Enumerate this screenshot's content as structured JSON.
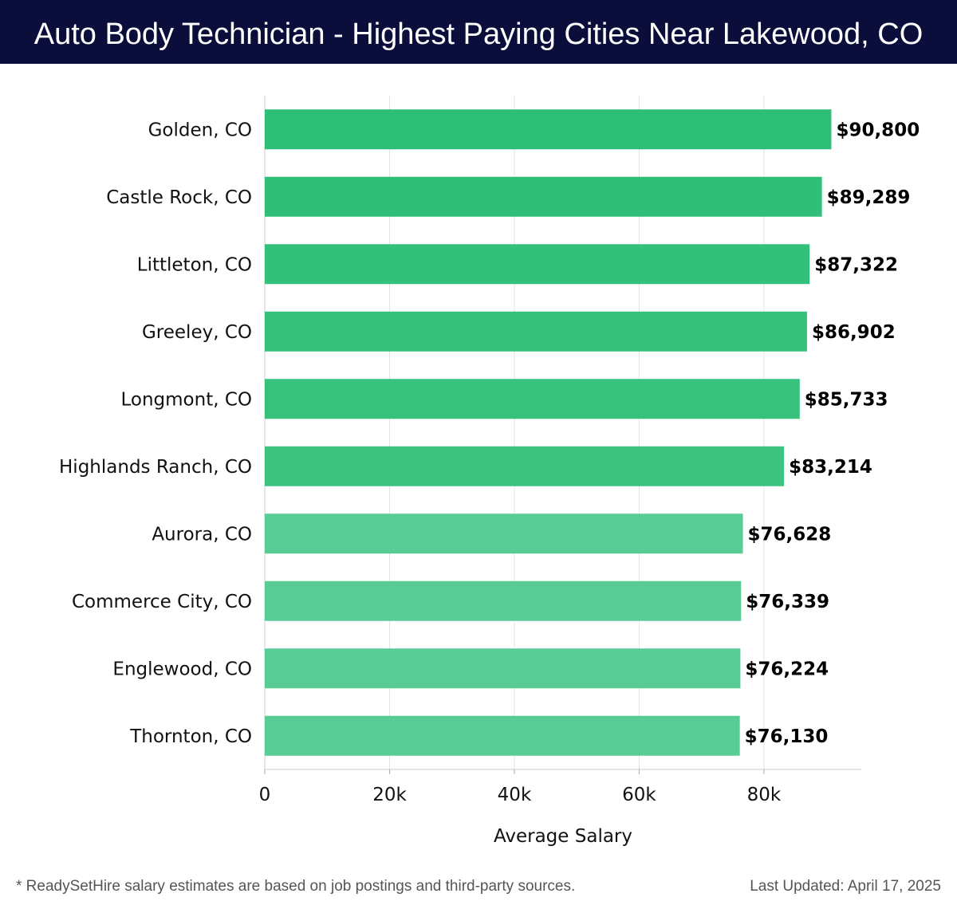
{
  "header": {
    "title": "Auto Body Technician - Highest Paying Cities Near Lakewood, CO",
    "background_color": "#0b0d3b"
  },
  "chart_data": {
    "type": "bar",
    "orientation": "horizontal",
    "title": "Auto Body Technician - Highest Paying Cities Near Lakewood, CO",
    "categories": [
      "Golden, CO",
      "Castle Rock, CO",
      "Littleton, CO",
      "Greeley, CO",
      "Longmont, CO",
      "Highlands Ranch, CO",
      "Aurora, CO",
      "Commerce City, CO",
      "Englewood, CO",
      "Thornton, CO"
    ],
    "values": [
      90800,
      89289,
      87322,
      86902,
      85733,
      83214,
      76628,
      76339,
      76224,
      76130
    ],
    "value_labels": [
      "$90,800",
      "$89,289",
      "$87,322",
      "$86,902",
      "$85,733",
      "$83,214",
      "$76,628",
      "$76,339",
      "$76,224",
      "$76,130"
    ],
    "bar_colors": [
      "#2dbe78",
      "#2fbf79",
      "#33c07b",
      "#35c17c",
      "#37c17d",
      "#3dc380",
      "#58cc95",
      "#58cc95",
      "#58cc95",
      "#58cc95"
    ],
    "xlabel": "Average Salary",
    "ylabel": "",
    "xlim": [
      0,
      95600
    ],
    "xticks": [
      0,
      20000,
      40000,
      60000,
      80000
    ],
    "xtick_labels": [
      "0",
      "20k",
      "40k",
      "60k",
      "80k"
    ],
    "grid": true,
    "legend": "none"
  },
  "footer": {
    "note": "* ReadySetHire salary estimates are based on job postings and third-party sources.",
    "updated": "Last Updated: April 17, 2025"
  }
}
